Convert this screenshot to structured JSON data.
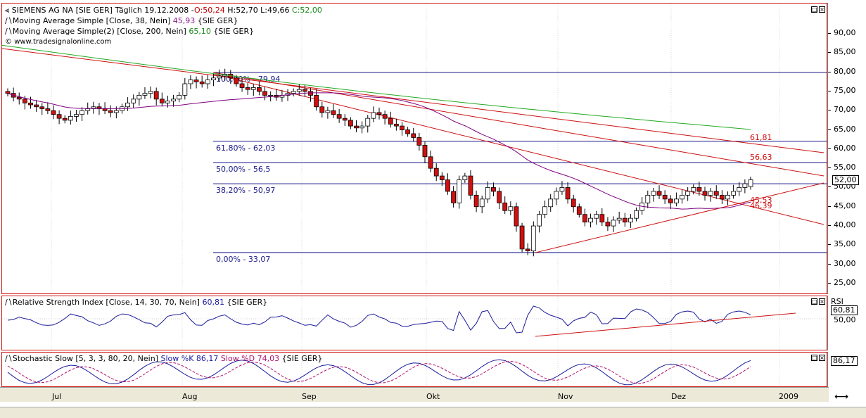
{
  "header": {
    "title": "SIEMENS AG NA [SIE GER]  Täglich 19.12.2008 -",
    "ohlc_o": "O:50,24",
    "ohlc_hl": "H:52,70 L:49,66",
    "ohlc_c": "C:52,00",
    "ma38_label": "Moving Average Simple [Close, 38, Nein]",
    "ma38_value": "45,93",
    "ma38_suffix": "{SIE GER}",
    "ma200_label": "Moving Average Simple(2) [Close, 200, Nein]",
    "ma200_value": "65,10",
    "ma200_suffix": "{SIE GER}",
    "website": "www.tradesignalonline.com"
  },
  "price_axis": {
    "ticks": [
      "90,00",
      "85,00",
      "80,00",
      "75,00",
      "70,00",
      "65,00",
      "60,00",
      "55,00",
      "50,00",
      "45,00",
      "40,00",
      "35,00",
      "30,00",
      "25,00"
    ],
    "current": "52,00"
  },
  "fib_labels": [
    "100,00% - 79,94",
    "61,80% - 62,03",
    "50,00% - 56,5",
    "38,20% - 50,97",
    "0,00% - 33,07"
  ],
  "fib_levels": [
    79.94,
    62.03,
    56.5,
    50.97,
    33.07
  ],
  "trendline_labels": [
    "61,81",
    "56,63",
    "45,53",
    "46,39"
  ],
  "rsi": {
    "label": "Relative Strength Index [Close, 14, 30, 70, Nein]",
    "value": "60,81",
    "suffix": "{SIE GER}",
    "axis_title": "RSI",
    "axis_badge": "60,81",
    "axis_tick": "50,00"
  },
  "stoch": {
    "label": "Stochastic Slow [5, 3, 3, 80, 20, Nein]",
    "k_label": "Slow %K",
    "k_value": "86,17",
    "d_label": "Slow %D",
    "d_value": "74,03",
    "suffix": "{SIE GER}",
    "axis_badge": "86,17"
  },
  "x_axis": [
    "Jul",
    "Aug",
    "Sep",
    "Okt",
    "Nov",
    "Dez",
    "2009"
  ],
  "colors": {
    "frame": "#d01010",
    "ma38": "#800080",
    "ma200": "#22aa22",
    "fib": "#1a1a8a",
    "trend": "#cc1010",
    "up_candle": "#ffffff",
    "down_candle": "#d01010"
  },
  "chart_data": [
    {
      "type": "candlestick",
      "title": "SIEMENS AG NA [SIE GER] Täglich 19.12.2008",
      "period": "Jul 2008 – 19.12.2008",
      "ylim": [
        22,
        93
      ],
      "last": {
        "open": 50.24,
        "high": 52.7,
        "low": 49.66,
        "close": 52.0
      },
      "close_approx": [
        74.5,
        73.5,
        73,
        72,
        71.5,
        71,
        70.5,
        70,
        69,
        68,
        67.5,
        68.5,
        69,
        70,
        70.5,
        71,
        70.5,
        70,
        69.5,
        70,
        71,
        72,
        73,
        74,
        74.5,
        75,
        73,
        72,
        72.5,
        73,
        74,
        77,
        78,
        77.5,
        77,
        78,
        78.5,
        79,
        79.5,
        78.5,
        77,
        76,
        75.5,
        76,
        75,
        74,
        74,
        73.5,
        74,
        74.5,
        75,
        75.5,
        75,
        74,
        71,
        69.5,
        70,
        69,
        68,
        67.5,
        66,
        65.5,
        66,
        68,
        69.5,
        69,
        68,
        66.5,
        66,
        65,
        64,
        63,
        61,
        58,
        55,
        53,
        52,
        49,
        46,
        52,
        53,
        48,
        45,
        47,
        50,
        49,
        46,
        44,
        45,
        40,
        34,
        33.5,
        40,
        43,
        45,
        47,
        49,
        50,
        47,
        45,
        43,
        41,
        42,
        43,
        41,
        40,
        41.5,
        42,
        41,
        42,
        44,
        46,
        48,
        49,
        48,
        47,
        46,
        47,
        48,
        49,
        50,
        49,
        48,
        49,
        48,
        47,
        48,
        49,
        50,
        51,
        52
      ],
      "series_ma38_end": 45.93,
      "series_ma200_end": 65.1,
      "fibonacci": [
        {
          "label": "100,00%",
          "value": 79.94
        },
        {
          "label": "61,80%",
          "value": 62.03
        },
        {
          "label": "50,00%",
          "value": 56.5
        },
        {
          "label": "38,20%",
          "value": 50.97
        },
        {
          "label": "0,00%",
          "value": 33.07
        }
      ],
      "trendline_values": [
        61.81,
        56.63,
        45.53,
        46.39
      ]
    },
    {
      "type": "line",
      "title": "Relative Strength Index [Close, 14, 30, 70, Nein]",
      "last": 60.81,
      "ylim": [
        0,
        100
      ]
    },
    {
      "type": "line",
      "title": "Stochastic Slow [5, 3, 3, 80, 20, Nein]",
      "series": [
        {
          "name": "Slow %K",
          "last": 86.17
        },
        {
          "name": "Slow %D",
          "last": 74.03
        }
      ],
      "ylim": [
        0,
        100
      ]
    }
  ]
}
